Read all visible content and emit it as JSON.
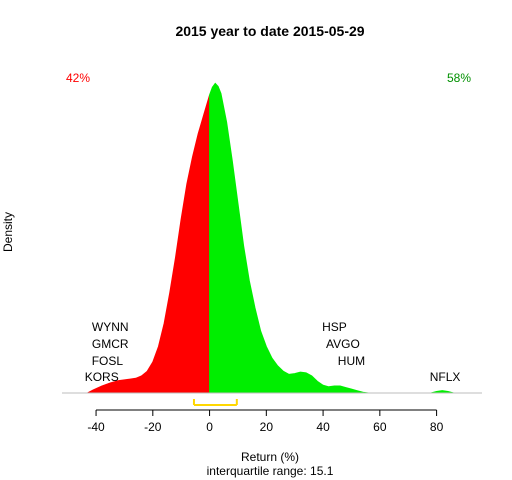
{
  "chart_data": {
    "type": "area",
    "title": "2015  year to date 2015-05-29",
    "xlabel": "Return (%)",
    "ylabel": "Density",
    "subtitle": "interquartile range: 15.1",
    "xlim": [
      -52,
      96
    ],
    "ylim": [
      0,
      0.0425
    ],
    "x_ticks": [
      -40,
      -20,
      0,
      20,
      40,
      60,
      80
    ],
    "split_x": 0,
    "colors": {
      "negative": "#ff0000",
      "positive": "#00ee00",
      "baseline": "#bebebe",
      "iqr": "#ffd700",
      "left_pct_color": "#ff0000",
      "right_pct_color": "#009000"
    },
    "left_pct": "42%",
    "right_pct": "58%",
    "iqr_range": [
      -5.5,
      9.6
    ],
    "density": [
      [
        -43,
        0.0
      ],
      [
        -41,
        0.0004
      ],
      [
        -38,
        0.0009
      ],
      [
        -35,
        0.0013
      ],
      [
        -32,
        0.0016
      ],
      [
        -30,
        0.0017
      ],
      [
        -28,
        0.0018
      ],
      [
        -26,
        0.0019
      ],
      [
        -24,
        0.0022
      ],
      [
        -22,
        0.0028
      ],
      [
        -20,
        0.004
      ],
      [
        -18,
        0.006
      ],
      [
        -16,
        0.009
      ],
      [
        -14,
        0.013
      ],
      [
        -12,
        0.0175
      ],
      [
        -10,
        0.0225
      ],
      [
        -8,
        0.027
      ],
      [
        -6,
        0.0305
      ],
      [
        -4,
        0.0335
      ],
      [
        -2,
        0.036
      ],
      [
        0,
        0.0385
      ],
      [
        1,
        0.0395
      ],
      [
        2,
        0.04
      ],
      [
        3,
        0.0396
      ],
      [
        4,
        0.0387
      ],
      [
        6,
        0.035
      ],
      [
        8,
        0.03
      ],
      [
        10,
        0.0245
      ],
      [
        12,
        0.019
      ],
      [
        14,
        0.0145
      ],
      [
        16,
        0.011
      ],
      [
        18,
        0.008
      ],
      [
        20,
        0.006
      ],
      [
        22,
        0.0045
      ],
      [
        24,
        0.0035
      ],
      [
        26,
        0.0028
      ],
      [
        28,
        0.0024
      ],
      [
        30,
        0.0025
      ],
      [
        32,
        0.0027
      ],
      [
        34,
        0.0026
      ],
      [
        36,
        0.0022
      ],
      [
        38,
        0.0015
      ],
      [
        40,
        0.001
      ],
      [
        42,
        0.0008
      ],
      [
        44,
        0.0009
      ],
      [
        46,
        0.0009
      ],
      [
        48,
        0.0007
      ],
      [
        50,
        0.0005
      ],
      [
        52,
        0.0003
      ],
      [
        54,
        0.0001
      ],
      [
        56,
        0.0
      ],
      [
        58,
        0.0
      ],
      [
        78,
        0.0
      ],
      [
        80,
        0.0002
      ],
      [
        82,
        0.0003
      ],
      [
        84,
        0.0002
      ],
      [
        86,
        0.0
      ]
    ],
    "annotations": [
      {
        "text": "WYNN",
        "x": -35
      },
      {
        "text": "GMCR",
        "x": -35
      },
      {
        "text": "FOSL",
        "x": -36
      },
      {
        "text": "KORS",
        "x": -38
      },
      {
        "text": "HSP",
        "x": 44
      },
      {
        "text": "AVGO",
        "x": 47
      },
      {
        "text": "HUM",
        "x": 50
      },
      {
        "text": "NFLX",
        "x": 83
      }
    ]
  }
}
